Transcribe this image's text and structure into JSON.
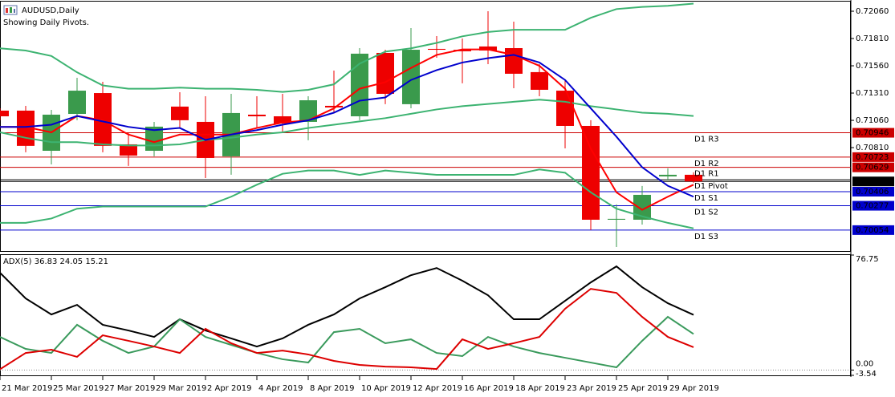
{
  "chart_data": [
    {
      "type": "candlestick",
      "title": "AUDUSD,Daily",
      "subtitle": "Showing Daily Pivots.",
      "categories": [
        "21 Mar 2019",
        null,
        "25 Mar 2019",
        null,
        "27 Mar 2019",
        null,
        "29 Mar 2019",
        null,
        "2 Apr 2019",
        null,
        "4 Apr 2019",
        null,
        "8 Apr 2019",
        null,
        "10 Apr 2019",
        null,
        "12 Apr 2019",
        null,
        "16 Apr 2019",
        null,
        "18 Apr 2019",
        null,
        "23 Apr 2019",
        null,
        "25 Apr 2019",
        null,
        "29 Apr 2019",
        null
      ],
      "open": [
        0.71149,
        0.71149,
        0.70781,
        0.71119,
        0.7131,
        0.7084,
        0.70781,
        0.71186,
        0.71046,
        0.7073,
        0.71112,
        0.71097,
        0.71046,
        0.71193,
        0.71097,
        0.71678,
        0.71208,
        0.71715,
        0.71707,
        0.71737,
        0.71722,
        0.71502,
        0.71332,
        0.71009,
        0.70149,
        0.70149,
        0.70546,
        0.70561
      ],
      "high": [
        0.71171,
        0.71193,
        0.71156,
        0.7145,
        0.71413,
        0.7095,
        0.71046,
        0.71318,
        0.71281,
        0.71303,
        0.71281,
        0.71303,
        0.71281,
        0.71516,
        0.71722,
        0.71707,
        0.71906,
        0.71832,
        0.7181,
        0.7206,
        0.71965,
        0.71575,
        0.71428,
        0.71061,
        0.70289,
        0.70458,
        0.7062,
        0.70583
      ],
      "low": [
        0.71061,
        0.70767,
        0.70656,
        0.71061,
        0.70767,
        0.70642,
        0.7073,
        0.70987,
        0.70531,
        0.70561,
        0.70987,
        0.7095,
        0.70877,
        0.71134,
        0.71061,
        0.71208,
        0.71171,
        0.71634,
        0.71399,
        0.71575,
        0.71354,
        0.71281,
        0.70803,
        0.70054,
        0.69899,
        0.70105,
        0.70509,
        0.70488
      ],
      "close": [
        0.71097,
        0.70826,
        0.71112,
        0.71332,
        0.70826,
        0.70737,
        0.71002,
        0.71061,
        0.70715,
        0.71127,
        0.71097,
        0.71031,
        0.71244,
        0.71178,
        0.71671,
        0.71303,
        0.71707,
        0.71707,
        0.71693,
        0.717,
        0.71487,
        0.7134,
        0.71009,
        0.70149,
        0.70157,
        0.70377,
        0.70561,
        0.705
      ],
      "up_color": "#3a9a4c",
      "down_color": "#ee0000",
      "ylim": [
        0.69862,
        0.72141
      ],
      "yticks": [
        {
          "value": 0.7206,
          "label": "0.72060"
        },
        {
          "value": 0.7181,
          "label": "0.71810"
        },
        {
          "value": 0.7156,
          "label": "0.71560"
        },
        {
          "value": 0.7131,
          "label": "0.71310"
        },
        {
          "value": 0.7106,
          "label": "0.71060"
        },
        {
          "value": 0.7081,
          "label": "0.70810"
        }
      ],
      "overlays": [
        {
          "color": "#3cb371",
          "values": [
            0.7172,
            0.717,
            0.7165,
            0.715,
            0.7138,
            0.7135,
            0.7135,
            0.7136,
            0.7135,
            0.7135,
            0.7134,
            0.7132,
            0.7134,
            0.7139,
            0.7158,
            0.7169,
            0.7172,
            0.7177,
            0.7183,
            0.7187,
            0.7189,
            0.7189,
            0.7189,
            0.72,
            0.7208,
            0.721,
            0.7211,
            0.7213
          ]
        },
        {
          "color": "#3cb371",
          "values": [
            0.7095,
            0.709,
            0.7086,
            0.7086,
            0.7084,
            0.7083,
            0.7083,
            0.7084,
            0.7088,
            0.709,
            0.7093,
            0.7095,
            0.7099,
            0.7102,
            0.7105,
            0.7108,
            0.7112,
            0.7116,
            0.7119,
            0.7121,
            0.7123,
            0.7125,
            0.7123,
            0.7119,
            0.7116,
            0.7113,
            0.7112,
            0.711
          ]
        },
        {
          "color": "#3cb371",
          "values": [
            0.7012,
            0.7012,
            0.7016,
            0.7025,
            0.7027,
            0.7027,
            0.7027,
            0.7027,
            0.7027,
            0.7036,
            0.7047,
            0.7057,
            0.706,
            0.706,
            0.7056,
            0.706,
            0.7058,
            0.7056,
            0.7056,
            0.7056,
            0.7056,
            0.7061,
            0.7058,
            0.704,
            0.7025,
            0.7018,
            0.7012,
            0.7007
          ]
        },
        {
          "color": "#ff0000",
          "values": [
            0.71,
            0.71,
            0.7095,
            0.711,
            0.7106,
            0.7093,
            0.7086,
            0.7093,
            0.7093,
            0.7093,
            0.7099,
            0.7104,
            0.7106,
            0.7117,
            0.7135,
            0.7141,
            0.7154,
            0.7166,
            0.7171,
            0.7171,
            0.7166,
            0.7156,
            0.7135,
            0.708,
            0.704,
            0.7024,
            0.7036,
            0.7047
          ]
        },
        {
          "color": "#0000cd",
          "values": [
            0.71,
            0.71,
            0.7102,
            0.711,
            0.7105,
            0.71,
            0.7097,
            0.7099,
            0.7088,
            0.7093,
            0.7097,
            0.7102,
            0.7106,
            0.7113,
            0.7124,
            0.7127,
            0.7143,
            0.7152,
            0.7159,
            0.7163,
            0.7166,
            0.7159,
            0.7143,
            0.7117,
            0.7091,
            0.7063,
            0.7046,
            0.7036
          ]
        }
      ],
      "pivots": [
        {
          "name": "D1 R3",
          "value": 0.70946,
          "label": "0.70946",
          "color": "#cc0000"
        },
        {
          "name": "D1 R2",
          "value": 0.70723,
          "label": "0.70723",
          "color": "#cc0000"
        },
        {
          "name": "D1 R1",
          "value": 0.70629,
          "label": "0.70629",
          "color": "#cc0000"
        },
        {
          "name": "D1 Pivot",
          "value": 0.70515,
          "color": "#000000"
        },
        {
          "name": "D1 S1",
          "value": 0.70406,
          "label": "0.70406",
          "color": "#0000cc"
        },
        {
          "name": "D1 S2",
          "value": 0.70277,
          "label": "0.70277",
          "color": "#0000cc"
        },
        {
          "name": "D1 S3",
          "value": 0.70054,
          "label": "0.70054",
          "color": "#0000cc"
        }
      ],
      "last_price": {
        "value": 0.705,
        "label": "0.70500",
        "color": "#000000"
      }
    },
    {
      "type": "line",
      "title": "ADX(5) 36.83 24.05 15.21",
      "ylim": [
        -3.54,
        76.75
      ],
      "yticks": [
        76.75,
        {
          "value": 0,
          "label": "0.00"
        },
        -3.54
      ],
      "series": [
        {
          "color": "#000000",
          "values": [
            64.9,
            47.8,
            37.1,
            43.5,
            30.2,
            26.4,
            22.1,
            33.9,
            26.4,
            21.1,
            15.7,
            21.1,
            30.2,
            37.1,
            47.8,
            55.3,
            63.3,
            68.1,
            59.6,
            49.9,
            33.9,
            33.9,
            46.2,
            58.5,
            69.2,
            55.3,
            44.6,
            36.83
          ]
        },
        {
          "color": "#3a9a5c",
          "values": [
            22.1,
            14.1,
            11.4,
            30.2,
            19.5,
            11.4,
            15.7,
            33.9,
            22.1,
            16.8,
            11.4,
            7.2,
            5.0,
            25.3,
            27.5,
            17.9,
            20.5,
            11.4,
            9.3,
            22.1,
            15.7,
            11.4,
            8.2,
            5.0,
            1.8,
            19.5,
            35.5,
            24.05
          ]
        },
        {
          "color": "#dd0000",
          "values": [
            0.5,
            11.4,
            13.6,
            8.8,
            23.2,
            19.5,
            15.7,
            11.4,
            27.5,
            17.9,
            11.4,
            13.0,
            10.4,
            6.1,
            3.4,
            2.3,
            1.8,
            0.7,
            20.5,
            14.1,
            17.9,
            22.1,
            40.9,
            54.2,
            51.5,
            35.5,
            22.1,
            15.21
          ]
        }
      ]
    }
  ]
}
